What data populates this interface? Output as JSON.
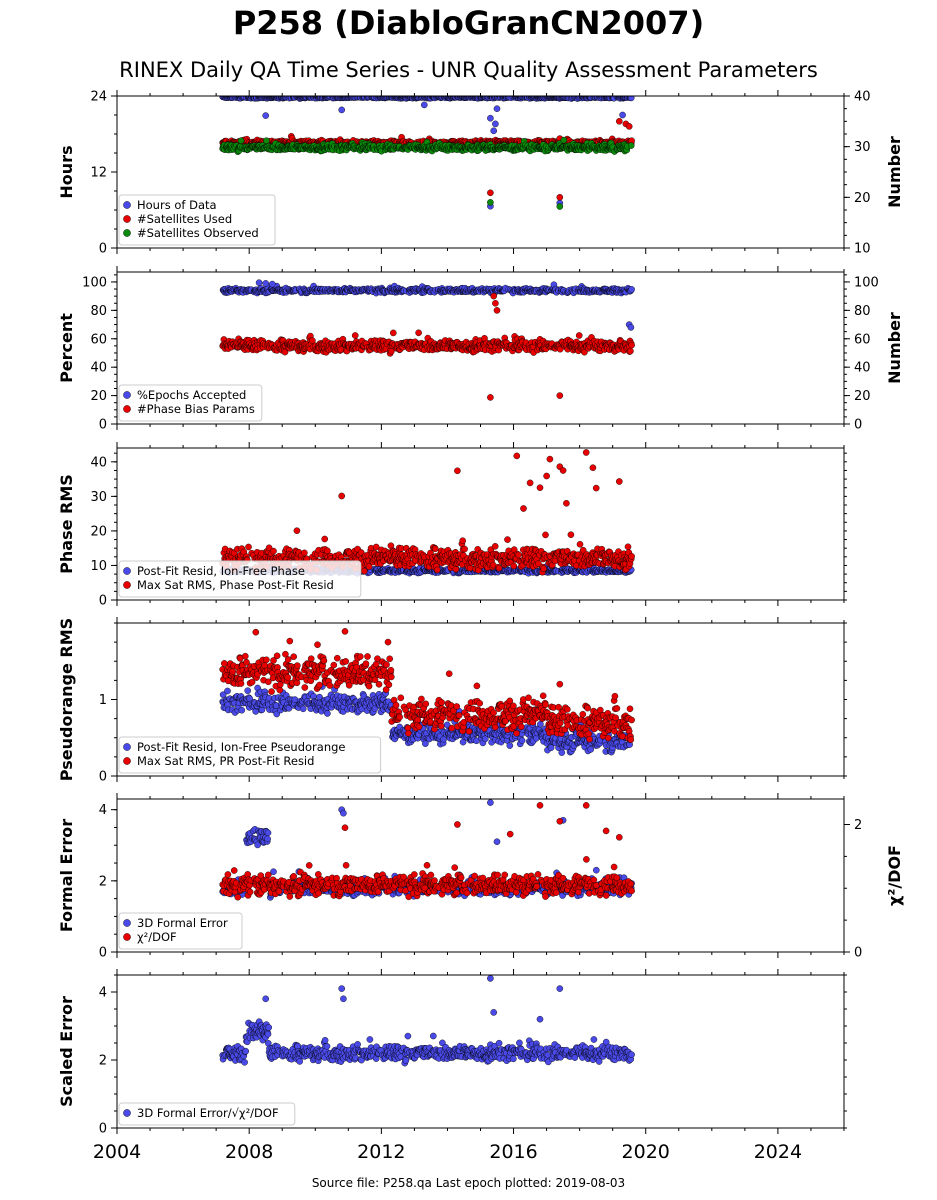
{
  "figure": {
    "title": "P258 (DiabloGranCN2007)",
    "subtitle": "RINEX Daily QA Time Series - UNR Quality Assessment Parameters",
    "footer": "Source file: P258.qa Last epoch plotted: 2019-08-03"
  },
  "colors": {
    "blue": "#4a4ae8",
    "red": "#e80000",
    "green": "#0a8a0a",
    "edge": "#000000"
  },
  "chart_data": [
    {
      "type": "scatter",
      "ylabel": "Hours",
      "y2label": "Number",
      "xlim": [
        2004,
        2026
      ],
      "ylim": [
        0,
        24
      ],
      "yticks": [
        0,
        12,
        24
      ],
      "y2lim": [
        10,
        40
      ],
      "y2ticks": [
        10,
        20,
        30,
        40
      ],
      "legend": "lower-left",
      "series": [
        {
          "name": "Hours of Data",
          "color": "blue",
          "axis": "left",
          "start": 2007.2,
          "end": 2019.58,
          "level": 23.8,
          "noise": 0.15,
          "outliers": [
            [
              2008.5,
              20.9
            ],
            [
              2010.8,
              21.8
            ],
            [
              2013.3,
              22.6
            ],
            [
              2015.3,
              20.5
            ],
            [
              2015.4,
              18.5
            ],
            [
              2015.45,
              19.6
            ],
            [
              2015.5,
              22.0
            ],
            [
              2015.3,
              6.6
            ],
            [
              2017.4,
              7.1
            ],
            [
              2019.3,
              21.0
            ]
          ]
        },
        {
          "name": "#Satellites Used",
          "color": "red",
          "axis": "right",
          "start": 2007.2,
          "end": 2019.58,
          "level": 30.8,
          "noise": 0.4,
          "outliers": [
            [
              2015.3,
              20.9
            ],
            [
              2017.4,
              20.0
            ],
            [
              2017.4,
              31.6
            ],
            [
              2019.2,
              35.0
            ],
            [
              2019.4,
              34.5
            ],
            [
              2019.5,
              34.0
            ]
          ]
        },
        {
          "name": "#Satellites Observed",
          "color": "green",
          "axis": "right",
          "start": 2007.2,
          "end": 2019.58,
          "level": 29.8,
          "noise": 0.6,
          "outliers": [
            [
              2015.3,
              19.0
            ],
            [
              2017.4,
              18.2
            ]
          ]
        }
      ]
    },
    {
      "type": "scatter",
      "ylabel": "Percent",
      "y2label": "Number",
      "xlim": [
        2004,
        2026
      ],
      "ylim": [
        0,
        107
      ],
      "yticks": [
        0,
        20,
        40,
        60,
        80,
        100
      ],
      "y2lim": [
        0,
        107
      ],
      "y2ticks": [
        0,
        20,
        40,
        60,
        80,
        100
      ],
      "legend": "lower-left",
      "series": [
        {
          "name": "%Epochs Accepted",
          "color": "blue",
          "axis": "left",
          "start": 2007.2,
          "end": 2019.58,
          "level": 94,
          "noise": 1.5,
          "outliers": [
            [
              2008.3,
              99.5
            ],
            [
              2008.5,
              99.0
            ],
            [
              2008.7,
              98.5
            ],
            [
              2019.5,
              70.0
            ],
            [
              2019.55,
              68.0
            ]
          ]
        },
        {
          "name": "#Phase Bias Params",
          "color": "red",
          "axis": "right",
          "start": 2007.2,
          "end": 2019.58,
          "level": 55,
          "noise": 4,
          "outliers": [
            [
              2015.3,
              18.7
            ],
            [
              2017.4,
              20.0
            ],
            [
              2015.4,
              90.0
            ],
            [
              2015.45,
              85.0
            ],
            [
              2015.5,
              80.0
            ]
          ]
        }
      ]
    },
    {
      "type": "scatter",
      "ylabel": "Phase RMS",
      "xlim": [
        2004,
        2026
      ],
      "ylim": [
        0,
        44
      ],
      "yticks": [
        0,
        10,
        20,
        30,
        40
      ],
      "legend": "lower-left",
      "series": [
        {
          "name": "Post-Fit Resid, Ion-Free Phase",
          "color": "blue",
          "axis": "left",
          "start": 2007.2,
          "end": 2019.58,
          "level": 8.5,
          "noise": 0.6,
          "outliers": []
        },
        {
          "name": "Max Sat RMS, Phase Post-Fit Resid",
          "color": "red",
          "axis": "left",
          "start": 2007.2,
          "end": 2019.58,
          "level": 12,
          "noise": 3,
          "outliers": [
            [
              2010.8,
              30.1
            ],
            [
              2014.3,
              37.4
            ],
            [
              2016.1,
              41.7
            ],
            [
              2016.5,
              33.9
            ],
            [
              2016.8,
              32.5
            ],
            [
              2017.0,
              35.9
            ],
            [
              2017.1,
              40.8
            ],
            [
              2017.4,
              38.6
            ],
            [
              2017.5,
              37.5
            ],
            [
              2018.2,
              42.7
            ],
            [
              2018.4,
              38.3
            ],
            [
              2018.5,
              32.4
            ],
            [
              2019.2,
              34.3
            ],
            [
              2016.3,
              26.5
            ],
            [
              2017.6,
              28.0
            ]
          ]
        }
      ]
    },
    {
      "type": "scatter",
      "ylabel": "Pseudorange RMS",
      "xlim": [
        2004,
        2026
      ],
      "ylim": [
        0,
        2.0
      ],
      "yticks": [
        0,
        1
      ],
      "legend": "lower-left",
      "series": [
        {
          "name": "Post-Fit Resid, Ion-Free Pseudorange",
          "color": "blue",
          "axis": "left",
          "start": 2007.2,
          "end": 2019.58,
          "level": 0.9,
          "noise": 0.12,
          "segments": [
            [
              2007.2,
              2012.3,
              0.95
            ],
            [
              2012.3,
              2017.0,
              0.55
            ],
            [
              2017.0,
              2019.58,
              0.45
            ]
          ],
          "outliers": []
        },
        {
          "name": "Max Sat RMS, PR Post-Fit Resid",
          "color": "red",
          "axis": "left",
          "start": 2007.2,
          "end": 2019.58,
          "level": 1.2,
          "noise": 0.2,
          "segments": [
            [
              2007.2,
              2012.3,
              1.35
            ],
            [
              2012.3,
              2017.0,
              0.8
            ],
            [
              2017.0,
              2019.58,
              0.7
            ]
          ],
          "outliers": [
            [
              2008.2,
              1.88
            ],
            [
              2010.9,
              1.89
            ],
            [
              2012.2,
              1.75
            ],
            [
              2017.4,
              1.2
            ]
          ]
        }
      ]
    },
    {
      "type": "scatter",
      "ylabel": "Formal Error",
      "y2label": "χ²/DOF",
      "xlim": [
        2004,
        2026
      ],
      "ylim": [
        0,
        4.3
      ],
      "yticks": [
        0,
        2,
        4
      ],
      "y2lim": [
        0,
        2.4
      ],
      "y2ticks": [
        0,
        2
      ],
      "legend": "lower-left",
      "series": [
        {
          "name": "3D Formal Error",
          "color": "blue",
          "axis": "left",
          "start": 2007.2,
          "end": 2019.58,
          "level": 1.8,
          "noise": 0.2,
          "bump": [
            2007.9,
            2008.6,
            3.2
          ],
          "outliers": [
            [
              2010.8,
              4.0
            ],
            [
              2010.85,
              3.9
            ],
            [
              2015.3,
              4.2
            ],
            [
              2015.5,
              3.1
            ],
            [
              2017.5,
              3.7
            ]
          ]
        },
        {
          "name": "χ²/DOF",
          "color": "red",
          "axis": "right",
          "start": 2007.2,
          "end": 2019.58,
          "level": 1.05,
          "noise": 0.15,
          "outliers": [
            [
              2010.9,
              1.95
            ],
            [
              2014.3,
              2.0
            ],
            [
              2015.9,
              1.85
            ],
            [
              2016.8,
              2.3
            ],
            [
              2017.4,
              2.05
            ],
            [
              2018.2,
              2.3
            ],
            [
              2018.8,
              1.9
            ],
            [
              2019.2,
              1.8
            ]
          ]
        }
      ]
    },
    {
      "type": "scatter",
      "ylabel": "Scaled Error",
      "xlim": [
        2004,
        2026
      ],
      "ylim": [
        0,
        4.5
      ],
      "yticks": [
        0,
        2,
        4
      ],
      "legend": "lower-left",
      "series": [
        {
          "name": "3D Formal Error/√χ²/DOF",
          "color": "blue",
          "axis": "left",
          "start": 2007.2,
          "end": 2019.58,
          "level": 2.2,
          "noise": 0.22,
          "bump": [
            2007.9,
            2008.6,
            2.8
          ],
          "outliers": [
            [
              2008.5,
              3.8
            ],
            [
              2010.8,
              4.1
            ],
            [
              2010.85,
              3.8
            ],
            [
              2015.3,
              4.4
            ],
            [
              2015.4,
              3.4
            ],
            [
              2017.4,
              4.1
            ],
            [
              2016.8,
              3.2
            ]
          ]
        }
      ]
    }
  ],
  "xticks": [
    2004,
    2008,
    2012,
    2016,
    2020,
    2024
  ]
}
